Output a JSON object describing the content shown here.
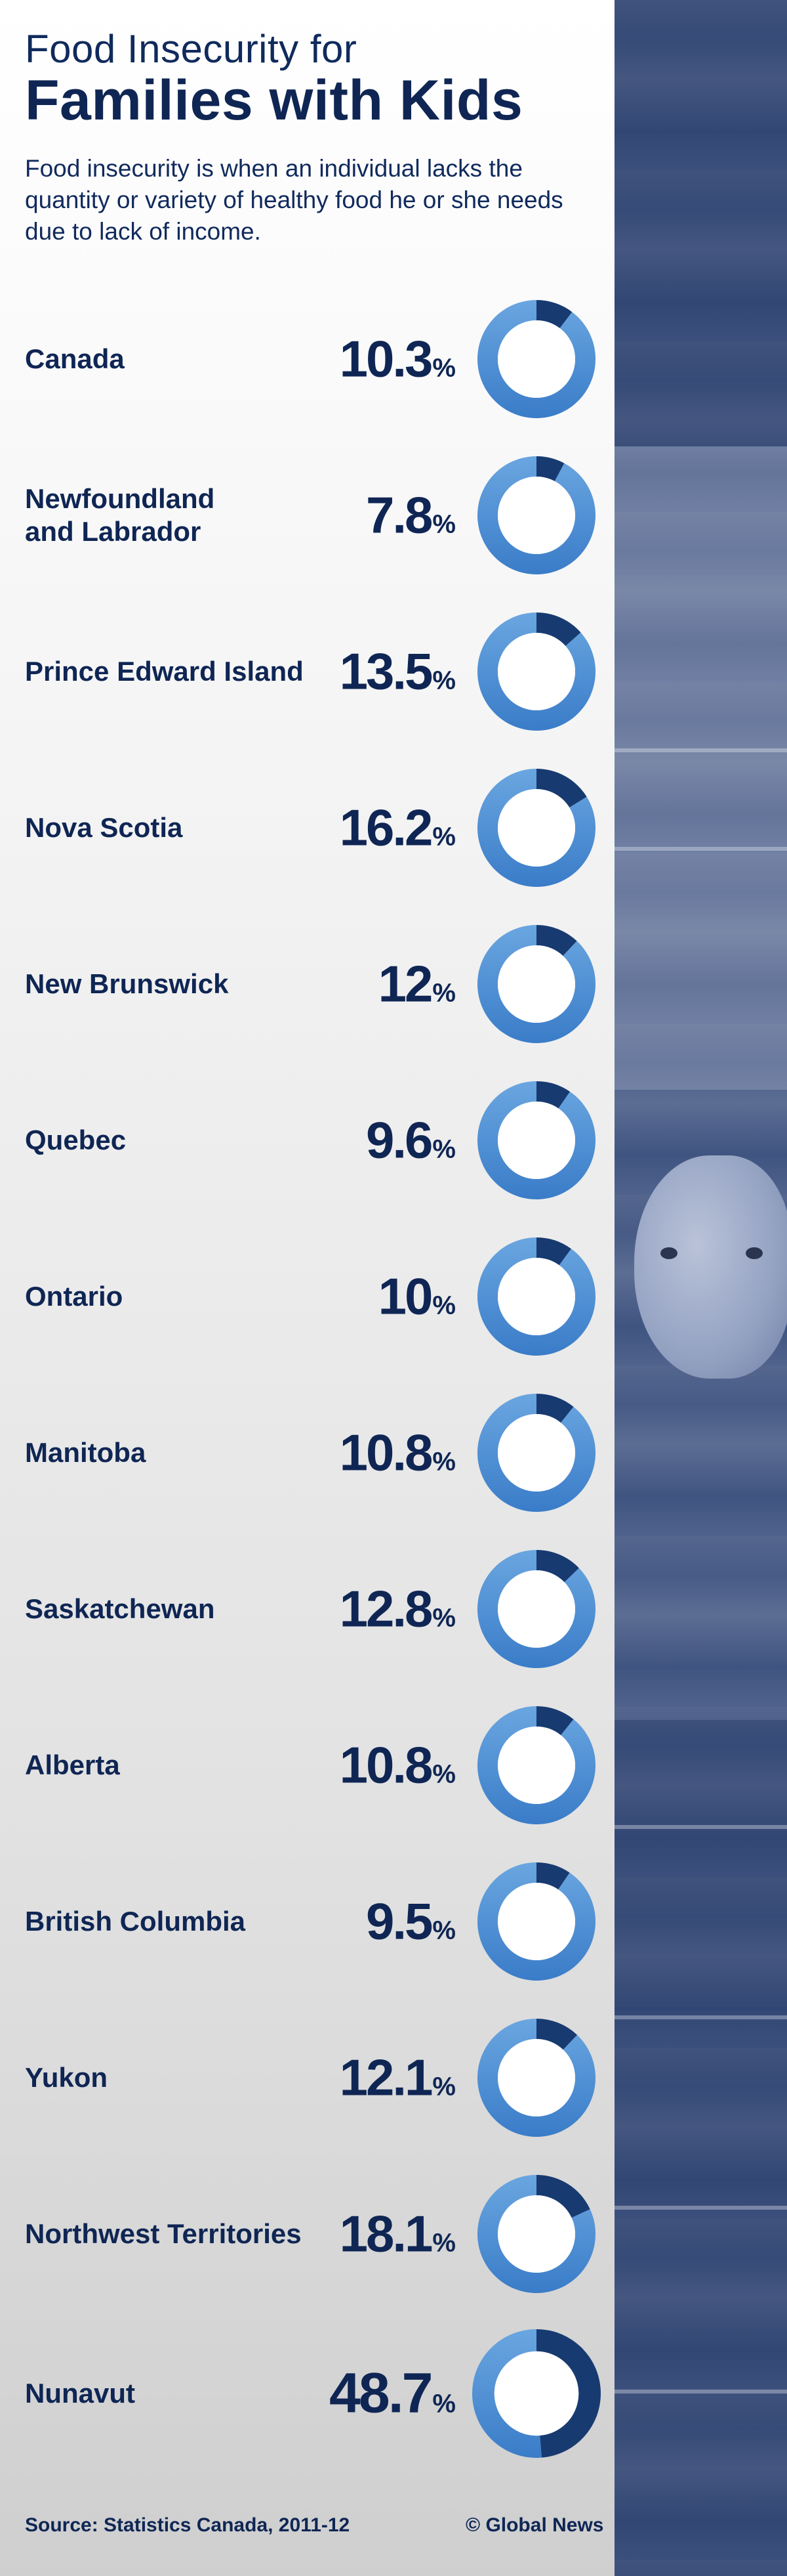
{
  "header": {
    "title_line1": "Food Insecurity for",
    "title_line2": "Families with Kids",
    "subtitle": "Food insecurity is when an individual lacks the quantity or variety of healthy food he or she needs due to lack of income."
  },
  "colors": {
    "dark_navy": "#0f2654",
    "ring_dark": "#173a70",
    "ring_light": "#3a7cc8",
    "ring_lightest": "#6aa6e0"
  },
  "chart_data": {
    "type": "donut",
    "unit": "%",
    "categories": [
      "Canada",
      "Newfoundland and Labrador",
      "Prince Edward Island",
      "Nova Scotia",
      "New Brunswick",
      "Quebec",
      "Ontario",
      "Manitoba",
      "Saskatchewan",
      "Alberta",
      "British Columbia",
      "Yukon",
      "Northwest Territories",
      "Nunavut"
    ],
    "label_lines": [
      [
        "Canada"
      ],
      [
        "Newfoundland",
        "and Labrador"
      ],
      [
        "Prince Edward Island"
      ],
      [
        "Nova Scotia"
      ],
      [
        "New Brunswick"
      ],
      [
        "Quebec"
      ],
      [
        "Ontario"
      ],
      [
        "Manitoba"
      ],
      [
        "Saskatchewan"
      ],
      [
        "Alberta"
      ],
      [
        "British Columbia"
      ],
      [
        "Yukon"
      ],
      [
        "Northwest Territories"
      ],
      [
        "Nunavut"
      ]
    ],
    "values": [
      10.3,
      7.8,
      13.5,
      16.2,
      12,
      9.6,
      10,
      10.8,
      12.8,
      10.8,
      9.5,
      12.1,
      18.1,
      48.7
    ],
    "value_labels": [
      "10.3",
      "7.8",
      "13.5",
      "16.2",
      "12",
      "9.6",
      "10",
      "10.8",
      "12.8",
      "10.8",
      "9.5",
      "12.1",
      "18.1",
      "48.7"
    ],
    "range": [
      0,
      100
    ]
  },
  "footer": {
    "source": "Source: Statistics Canada, 2011-12",
    "credit": "© Global News"
  }
}
